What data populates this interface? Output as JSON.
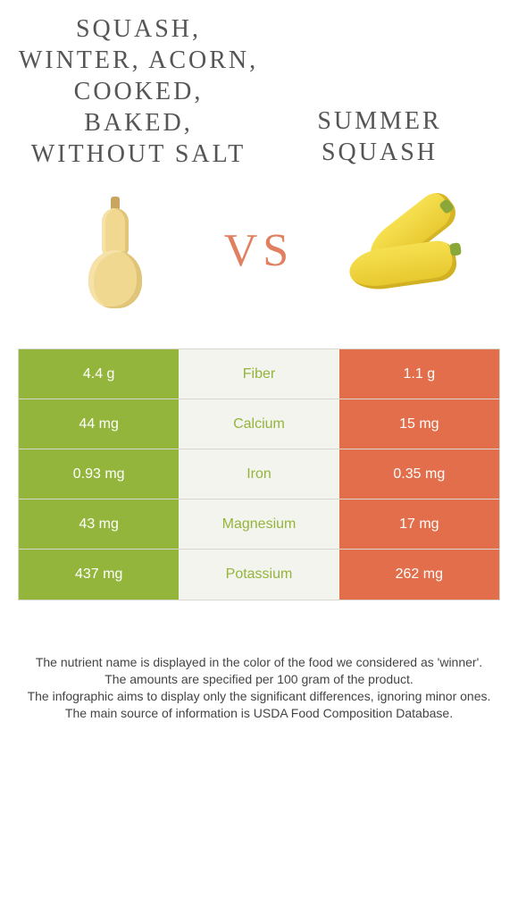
{
  "colors": {
    "left_bg": "#93b53c",
    "right_bg": "#e36e4b",
    "mid_bg": "#f4f4ee",
    "border": "#d8d8d0",
    "vs_text": "#e08060",
    "header_text": "#555555",
    "winner_left_text": "#93b53c",
    "winner_right_text": "#e36e4b"
  },
  "header": {
    "left_title": "Squash, winter, acorn, cooked, baked, without salt",
    "right_title": "Summer squash",
    "vs_label": "VS"
  },
  "comparison": {
    "rows": [
      {
        "nutrient": "Fiber",
        "left": "4.4 g",
        "right": "1.1 g",
        "winner": "left"
      },
      {
        "nutrient": "Calcium",
        "left": "44 mg",
        "right": "15 mg",
        "winner": "left"
      },
      {
        "nutrient": "Iron",
        "left": "0.93 mg",
        "right": "0.35 mg",
        "winner": "left"
      },
      {
        "nutrient": "Magnesium",
        "left": "43 mg",
        "right": "17 mg",
        "winner": "left"
      },
      {
        "nutrient": "Potassium",
        "left": "437 mg",
        "right": "262 mg",
        "winner": "left"
      }
    ]
  },
  "footer": {
    "line1": "The nutrient name is displayed in the color of the food we considered as 'winner'.",
    "line2": "The amounts are specified per 100 gram of the product.",
    "line3": "The infographic aims to display only the significant differences, ignoring minor ones.",
    "line4": "The main source of information is USDA Food Composition Database."
  }
}
